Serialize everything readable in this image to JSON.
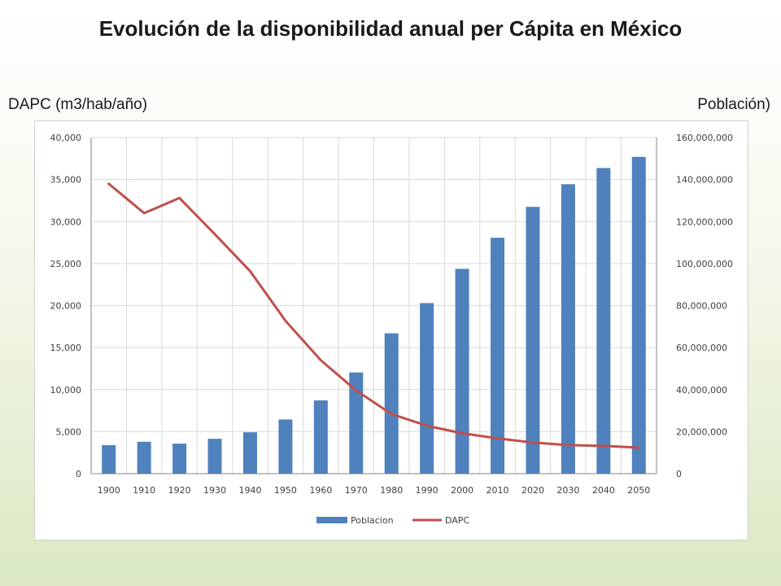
{
  "title": "Evolución de la disponibilidad anual per Cápita en México",
  "left_axis_caption": "DAPC (m3/hab/año)",
  "right_axis_caption": "Población)",
  "colors": {
    "bars": "#4f81bd",
    "line": "#c0504d",
    "grid": "#d9d9d9"
  },
  "chart_data": {
    "type": "bar",
    "categories": [
      "1900",
      "1910",
      "1920",
      "1930",
      "1940",
      "1950",
      "1960",
      "1970",
      "1980",
      "1990",
      "2000",
      "2010",
      "2020",
      "2030",
      "2040",
      "2050"
    ],
    "series": [
      {
        "name": "Poblacion",
        "type": "bar",
        "axis": "right",
        "values": [
          13600000,
          15200000,
          14300000,
          16600000,
          19700000,
          25800000,
          34900000,
          48200000,
          66800000,
          81200000,
          97500000,
          112300000,
          127000000,
          137800000,
          145500000,
          150800000
        ]
      },
      {
        "name": "DAPC",
        "type": "line",
        "axis": "left",
        "values": [
          34500,
          31000,
          32800,
          28500,
          24100,
          18200,
          13500,
          9900,
          7100,
          5700,
          4800,
          4200,
          3700,
          3400,
          3300,
          3100
        ]
      }
    ],
    "y_left": {
      "min": 0,
      "max": 40000,
      "ticks": [
        "0",
        "5,000",
        "10,000",
        "15,000",
        "20,000",
        "25,000",
        "30,000",
        "35,000",
        "40,000"
      ]
    },
    "y_right": {
      "min": 0,
      "max": 160000000,
      "ticks": [
        "0",
        "20,000,000",
        "40,000,000",
        "60,000,000",
        "80,000,000",
        "100,000,000",
        "120,000,000",
        "140,000,000",
        "160,000,000"
      ]
    },
    "grid": true,
    "legend": {
      "position": "bottom",
      "entries": [
        "Poblacion",
        "DAPC"
      ]
    }
  }
}
